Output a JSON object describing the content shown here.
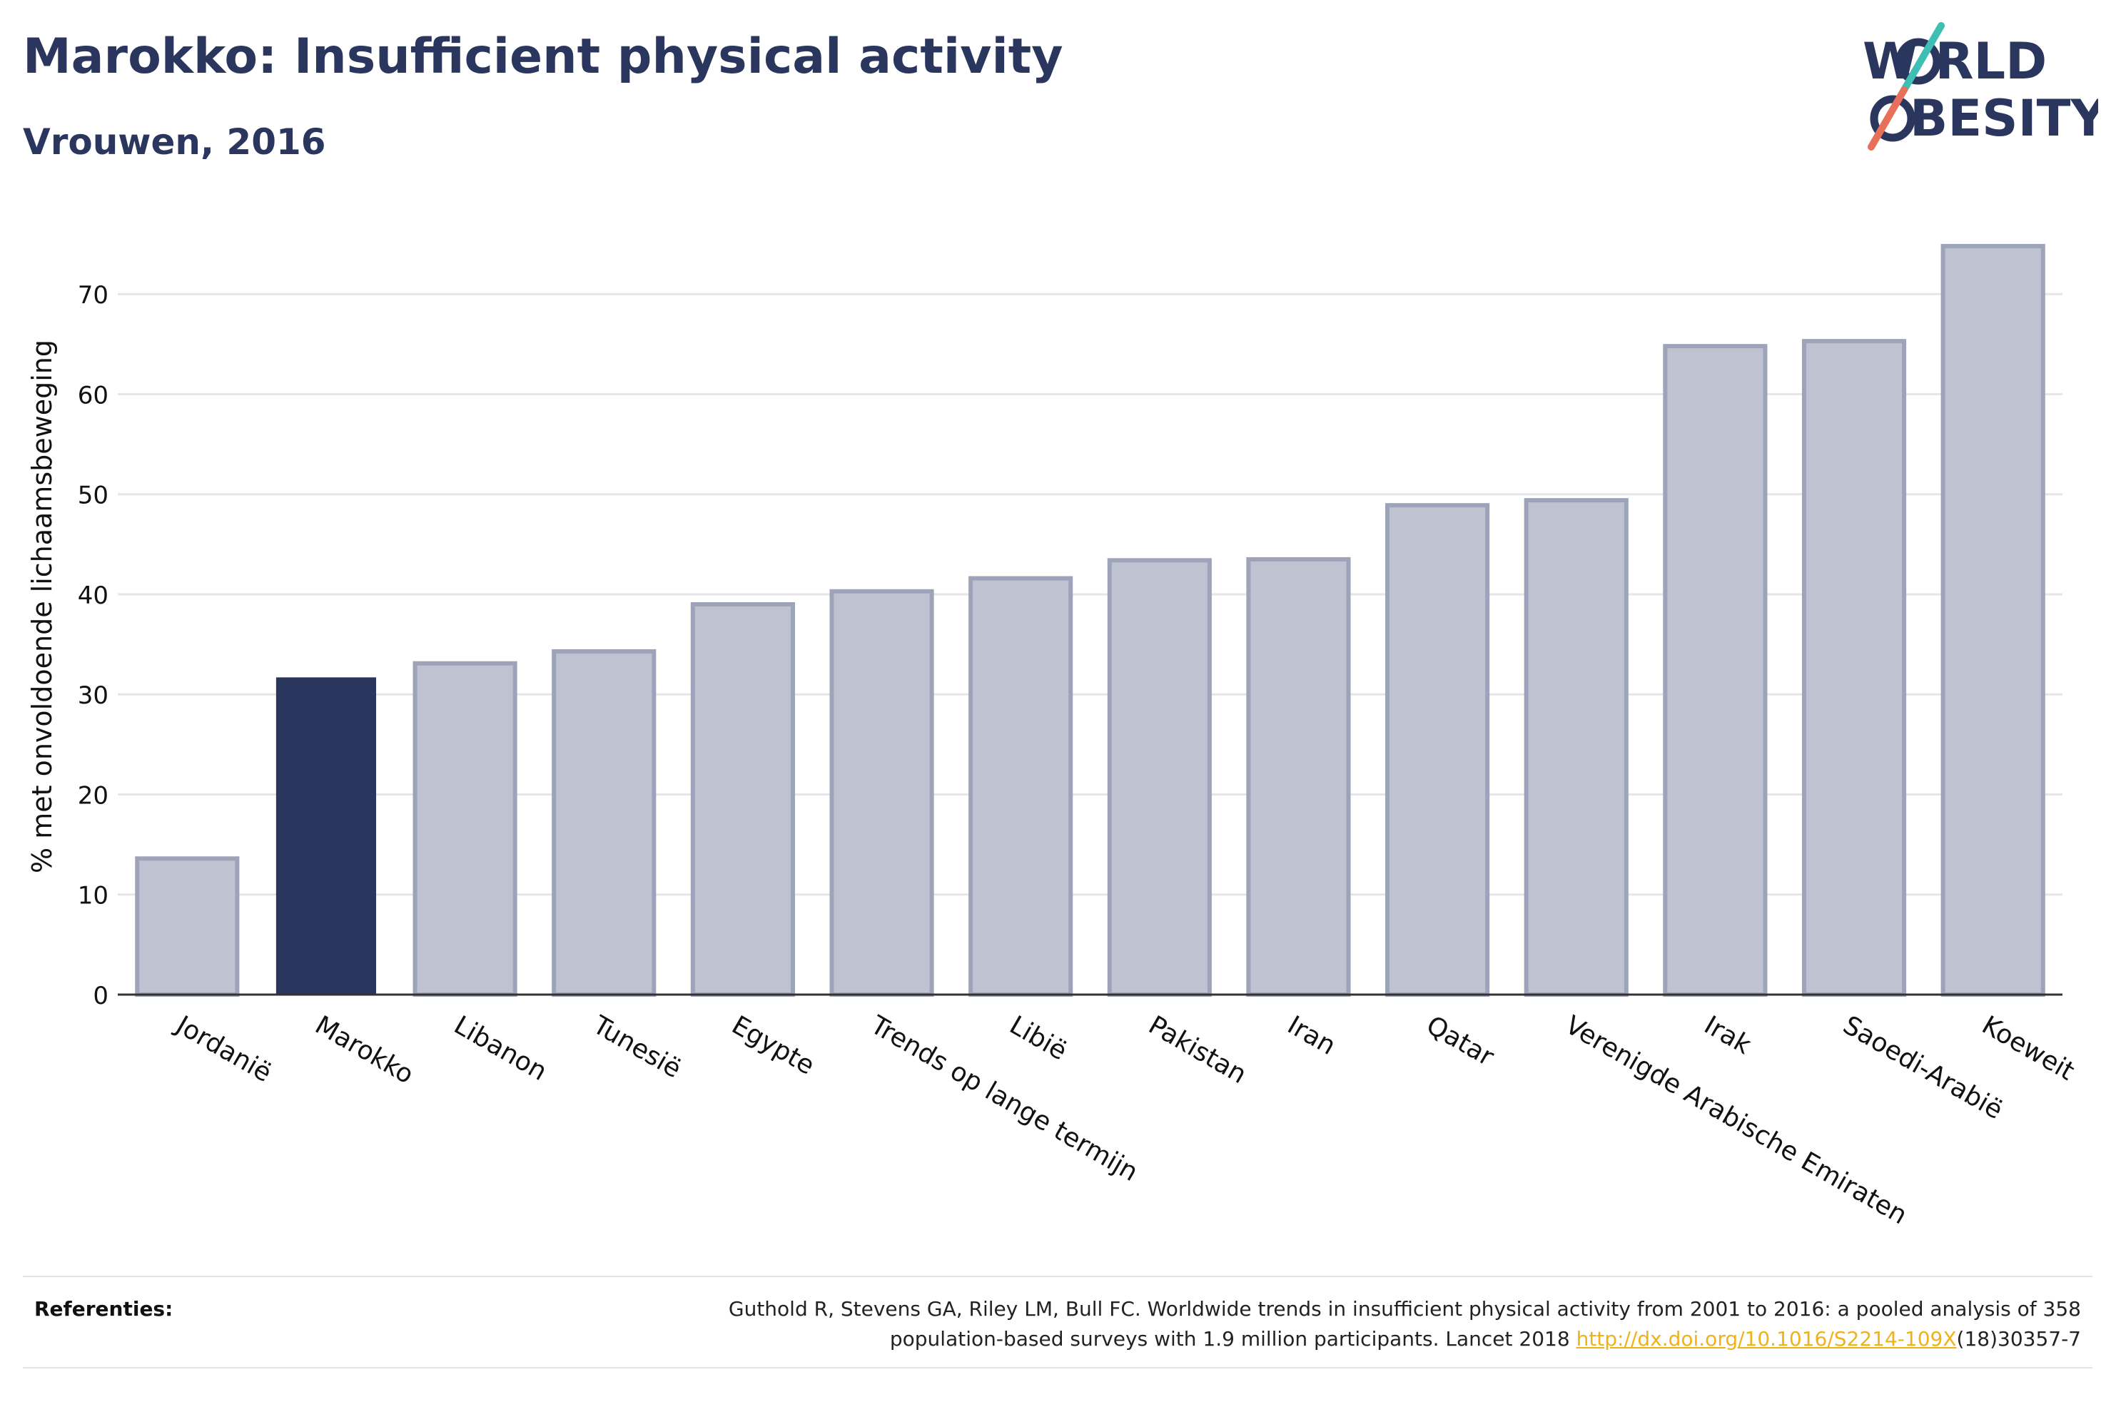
{
  "header": {
    "title": "Marokko: Insufficient physical activity",
    "subtitle": "Vrouwen, 2016"
  },
  "logo": {
    "line1": "W RLD",
    "line2": "BESITY",
    "text": "WORLD OBESITY",
    "colors": {
      "text": "#2b365e",
      "slash_top": "#3fbfb3",
      "slash_bottom": "#e8705a"
    }
  },
  "colors": {
    "highlight": "#2b365e",
    "bar_fill": "#bfc2d0",
    "bar_stroke": "#9da3b8",
    "gridline": "#e6e6ea",
    "axis": "#333333",
    "link": "#f0b21a"
  },
  "chart_data": {
    "type": "bar",
    "title": "Marokko: Insufficient physical activity",
    "subtitle": "Vrouwen, 2016",
    "xlabel": "",
    "ylabel": "% met onvoldoende lichaamsbeweging",
    "categories": [
      "Jordanië",
      "Marokko",
      "Libanon",
      "Tunesië",
      "Egypte",
      "Trends op lange termijn",
      "Libië",
      "Pakistan",
      "Iran",
      "Qatar",
      "Verenigde Arabische Emiraten",
      "Irak",
      "Saoedi-Arabië",
      "Koeweit"
    ],
    "values": [
      13.6,
      31.7,
      33.1,
      34.3,
      39.0,
      40.3,
      41.6,
      43.4,
      43.5,
      48.9,
      49.4,
      64.8,
      65.3,
      74.8
    ],
    "highlight": "Marokko",
    "yticks": [
      0,
      10,
      20,
      30,
      40,
      50,
      60,
      70
    ],
    "ylim": [
      0,
      78
    ],
    "grid": true,
    "legend": "none"
  },
  "references": {
    "label": "Referenties:",
    "text_line1": "Guthold R, Stevens GA, Riley LM, Bull FC. Worldwide trends in insufficient physical activity from 2001 to 2016: a pooled analysis of 358",
    "text_line2_before": "population-based surveys with 1.9 million participants. Lancet 2018 ",
    "link_text": "http://dx.doi.org/10.1016/S2214-109X",
    "text_line2_after": "(18)30357-7"
  }
}
